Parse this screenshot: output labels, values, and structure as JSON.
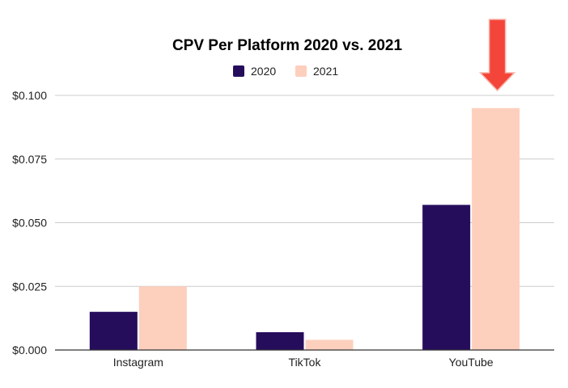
{
  "chart_data": {
    "type": "bar",
    "title": "CPV Per Platform 2020 vs. 2021",
    "categories": [
      "Instagram",
      "TikTok",
      "YouTube"
    ],
    "series": [
      {
        "name": "2020",
        "values": [
          0.015,
          0.007,
          0.057
        ],
        "color": "#260d5c"
      },
      {
        "name": "2021",
        "values": [
          0.025,
          0.004,
          0.095
        ],
        "color": "#fdcfbd"
      }
    ],
    "ylim": [
      0,
      0.1
    ],
    "yticks": [
      "$0.000",
      "$0.025",
      "$0.050",
      "$0.075",
      "$0.100"
    ],
    "ytick_values": [
      0,
      0.025,
      0.05,
      0.075,
      0.1
    ],
    "grid": true,
    "legend": "top-center",
    "annotation": {
      "shape": "down-arrow",
      "target": "YouTube 2021",
      "color": "#f4453a"
    }
  }
}
